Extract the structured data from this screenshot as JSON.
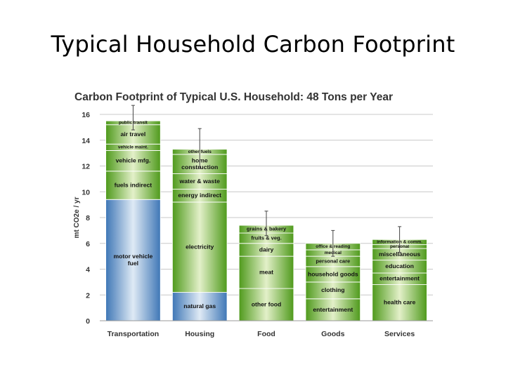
{
  "slide": {
    "title": "Typical Household Carbon Footprint"
  },
  "chart_data": {
    "type": "bar",
    "stacked": true,
    "title": "Carbon Footprint of Typical U.S. Household: 48 Tons per Year",
    "xlabel": "",
    "ylabel": "mt CO2e / yr",
    "ylim": [
      0,
      16
    ],
    "yticks": [
      0,
      2,
      4,
      6,
      8,
      10,
      12,
      14,
      16
    ],
    "grid": true,
    "categories": [
      "Transportation",
      "Housing",
      "Food",
      "Goods",
      "Services"
    ],
    "colors": {
      "fuel": "#3f77b6",
      "other": "#4f9a1c",
      "fuel_highlight": "#dfeaf5",
      "other_highlight": "#e3f0c9"
    },
    "bars": [
      {
        "category": "Transportation",
        "error_bar": [
          14.8,
          16.7
        ],
        "segments": [
          {
            "label": "motor vehicle fuel",
            "value": 9.4,
            "color": "fuel"
          },
          {
            "label": "fuels indirect",
            "value": 2.2,
            "color": "other"
          },
          {
            "label": "vehicle mfg.",
            "value": 1.6,
            "color": "other"
          },
          {
            "label": "vehicle maint.",
            "value": 0.5,
            "color": "other"
          },
          {
            "label": "air travel",
            "value": 1.5,
            "color": "other"
          },
          {
            "label": "public transit",
            "value": 0.3,
            "color": "other"
          }
        ]
      },
      {
        "category": "Housing",
        "error_bar": [
          11.8,
          14.9
        ],
        "segments": [
          {
            "label": "natural gas",
            "value": 2.2,
            "color": "fuel"
          },
          {
            "label": "electricity",
            "value": 7.0,
            "color": "other"
          },
          {
            "label": "energy indirect",
            "value": 1.0,
            "color": "other"
          },
          {
            "label": "water & waste",
            "value": 1.2,
            "color": "other"
          },
          {
            "label": "home construction",
            "value": 1.5,
            "color": "other"
          },
          {
            "label": "other fuels",
            "value": 0.4,
            "color": "other"
          }
        ]
      },
      {
        "category": "Food",
        "error_bar": [
          6.6,
          8.5
        ],
        "segments": [
          {
            "label": "other food",
            "value": 2.5,
            "color": "other"
          },
          {
            "label": "meat",
            "value": 2.5,
            "color": "other"
          },
          {
            "label": "dairy",
            "value": 1.0,
            "color": "other"
          },
          {
            "label": "fruits & veg.",
            "value": 0.8,
            "color": "other"
          },
          {
            "label": "grains & bakery",
            "value": 0.6,
            "color": "other"
          }
        ]
      },
      {
        "category": "Goods",
        "error_bar": [
          5.0,
          7.0
        ],
        "segments": [
          {
            "label": "entertainment",
            "value": 1.7,
            "color": "other"
          },
          {
            "label": "clothing",
            "value": 1.3,
            "color": "other"
          },
          {
            "label": "household goods",
            "value": 1.2,
            "color": "other"
          },
          {
            "label": "personal care",
            "value": 0.8,
            "color": "other"
          },
          {
            "label": "medical",
            "value": 0.5,
            "color": "other"
          },
          {
            "label": "office & reading",
            "value": 0.5,
            "color": "other"
          }
        ]
      },
      {
        "category": "Services",
        "error_bar": [
          5.3,
          7.3
        ],
        "segments": [
          {
            "label": "health care",
            "value": 2.8,
            "color": "other"
          },
          {
            "label": "entertainment",
            "value": 0.9,
            "color": "other"
          },
          {
            "label": "education",
            "value": 1.0,
            "color": "other"
          },
          {
            "label": "miscellaneous",
            "value": 0.9,
            "color": "other"
          },
          {
            "label": "personal",
            "value": 0.3,
            "color": "other"
          },
          {
            "label": "information & comm.",
            "value": 0.4,
            "color": "other"
          }
        ]
      }
    ]
  }
}
